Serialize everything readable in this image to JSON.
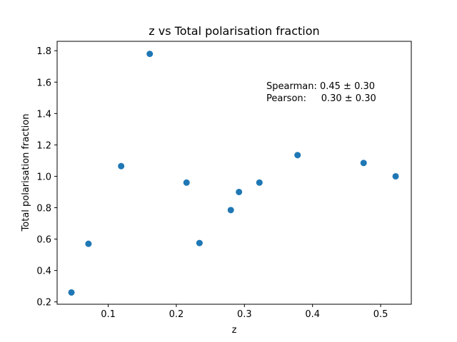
{
  "chart_data": {
    "type": "scatter",
    "title": "z vs Total polarisation fraction",
    "xlabel": "z",
    "ylabel": "Total polarisation fraction",
    "xlim": [
      0.025,
      0.545
    ],
    "ylim": [
      0.185,
      1.86
    ],
    "xticks": [
      "0.1",
      "0.2",
      "0.3",
      "0.4",
      "0.5"
    ],
    "yticks": [
      "0.2",
      "0.4",
      "0.6",
      "0.8",
      "1.0",
      "1.2",
      "1.4",
      "1.6",
      "1.8"
    ],
    "grid": false,
    "color": "#1f77b4",
    "points": [
      {
        "x": 0.046,
        "y": 0.26
      },
      {
        "x": 0.071,
        "y": 0.57
      },
      {
        "x": 0.119,
        "y": 1.065
      },
      {
        "x": 0.161,
        "y": 1.78
      },
      {
        "x": 0.215,
        "y": 0.96
      },
      {
        "x": 0.234,
        "y": 0.575
      },
      {
        "x": 0.28,
        "y": 0.785
      },
      {
        "x": 0.292,
        "y": 0.9
      },
      {
        "x": 0.322,
        "y": 0.96
      },
      {
        "x": 0.378,
        "y": 1.135
      },
      {
        "x": 0.475,
        "y": 1.085
      },
      {
        "x": 0.522,
        "y": 1.0
      }
    ],
    "annotations": [
      "Spearman: 0.45 ± 0.30",
      "Pearson:     0.30 ± 0.30"
    ]
  }
}
